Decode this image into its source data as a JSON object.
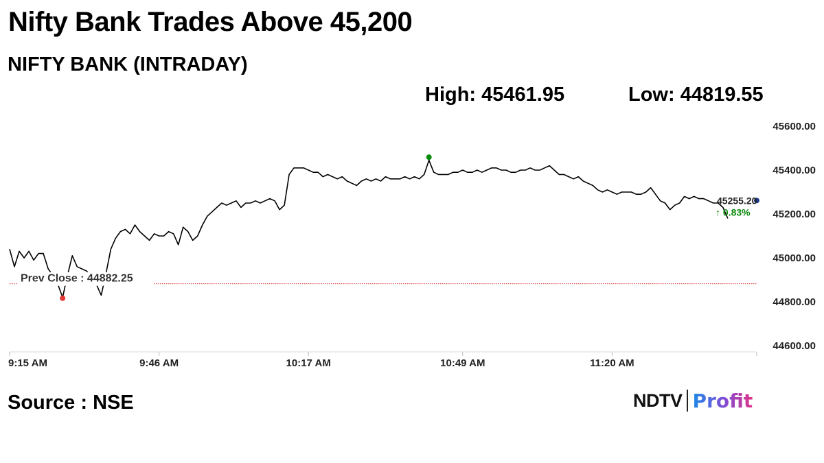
{
  "headline": "Nifty Bank Trades Above 45,200",
  "subtitle": "NIFTY BANK (INTRADAY)",
  "stats": {
    "high": "High: 45461.95",
    "low": "Low: 44819.55"
  },
  "source": "Source : NSE",
  "logo": {
    "brand": "NDTV",
    "product": "Profit"
  },
  "chart_data": {
    "type": "line",
    "x_ticks": [
      "9:15 AM",
      "9:46 AM",
      "10:17 AM",
      "10:49 AM",
      "11:20 AM"
    ],
    "y_ticks": [
      "45600.00",
      "45400.00",
      "45200.00",
      "45000.00",
      "44800.00",
      "44600.00"
    ],
    "ylim": [
      44600,
      45600
    ],
    "xlim": [
      "9:15 AM",
      "11:50 AM"
    ],
    "prev_close": {
      "label": "Prev Close : 44882.25",
      "value": 44882.25
    },
    "last": {
      "value": "45255.20",
      "change": "↑ 0.83%"
    },
    "high_value": 45461.95,
    "low_value": 44819.55,
    "series": [
      {
        "values": [
          [
            "9:15",
            45040
          ],
          [
            "9:16",
            44960
          ],
          [
            "9:17",
            45030
          ],
          [
            "9:18",
            45000
          ],
          [
            "9:19",
            45030
          ],
          [
            "9:20",
            44990
          ],
          [
            "9:21",
            45020
          ],
          [
            "9:22",
            45020
          ],
          [
            "9:23",
            44950
          ],
          [
            "9:24",
            44920
          ],
          [
            "9:25",
            44880
          ],
          [
            "9:26",
            44820
          ],
          [
            "9:27",
            44920
          ],
          [
            "9:28",
            45010
          ],
          [
            "9:29",
            44960
          ],
          [
            "9:30",
            44950
          ],
          [
            "9:31",
            44940
          ],
          [
            "9:32",
            44910
          ],
          [
            "9:33",
            44880
          ],
          [
            "9:34",
            44830
          ],
          [
            "9:35",
            44930
          ],
          [
            "9:36",
            45040
          ],
          [
            "9:37",
            45090
          ],
          [
            "9:38",
            45120
          ],
          [
            "9:39",
            45130
          ],
          [
            "9:40",
            45110
          ],
          [
            "9:41",
            45150
          ],
          [
            "9:42",
            45120
          ],
          [
            "9:43",
            45100
          ],
          [
            "9:44",
            45080
          ],
          [
            "9:45",
            45110
          ],
          [
            "9:46",
            45100
          ],
          [
            "9:47",
            45100
          ],
          [
            "9:48",
            45120
          ],
          [
            "9:49",
            45110
          ],
          [
            "9:50",
            45060
          ],
          [
            "9:51",
            45140
          ],
          [
            "9:52",
            45120
          ],
          [
            "9:53",
            45080
          ],
          [
            "9:54",
            45100
          ],
          [
            "9:55",
            45150
          ],
          [
            "9:56",
            45190
          ],
          [
            "9:57",
            45210
          ],
          [
            "9:58",
            45230
          ],
          [
            "9:59",
            45250
          ],
          [
            "10:00",
            45240
          ],
          [
            "10:01",
            45250
          ],
          [
            "10:02",
            45260
          ],
          [
            "10:03",
            45230
          ],
          [
            "10:04",
            45250
          ],
          [
            "10:05",
            45250
          ],
          [
            "10:06",
            45260
          ],
          [
            "10:07",
            45250
          ],
          [
            "10:08",
            45260
          ],
          [
            "10:09",
            45270
          ],
          [
            "10:10",
            45260
          ],
          [
            "10:11",
            45220
          ],
          [
            "10:12",
            45240
          ],
          [
            "10:13",
            45380
          ],
          [
            "10:14",
            45410
          ],
          [
            "10:15",
            45410
          ],
          [
            "10:16",
            45410
          ],
          [
            "10:17",
            45400
          ],
          [
            "10:18",
            45390
          ],
          [
            "10:19",
            45390
          ],
          [
            "10:20",
            45370
          ],
          [
            "10:21",
            45380
          ],
          [
            "10:22",
            45370
          ],
          [
            "10:23",
            45360
          ],
          [
            "10:24",
            45370
          ],
          [
            "10:25",
            45350
          ],
          [
            "10:26",
            45340
          ],
          [
            "10:27",
            45330
          ],
          [
            "10:28",
            45350
          ],
          [
            "10:29",
            45360
          ],
          [
            "10:30",
            45350
          ],
          [
            "10:31",
            45360
          ],
          [
            "10:32",
            45350
          ],
          [
            "10:33",
            45370
          ],
          [
            "10:34",
            45360
          ],
          [
            "10:35",
            45360
          ],
          [
            "10:36",
            45360
          ],
          [
            "10:37",
            45370
          ],
          [
            "10:38",
            45360
          ],
          [
            "10:39",
            45370
          ],
          [
            "10:40",
            45360
          ],
          [
            "10:41",
            45380
          ],
          [
            "10:42",
            45445
          ],
          [
            "10:43",
            45390
          ],
          [
            "10:44",
            45380
          ],
          [
            "10:45",
            45380
          ],
          [
            "10:46",
            45380
          ],
          [
            "10:47",
            45390
          ],
          [
            "10:48",
            45390
          ],
          [
            "10:49",
            45400
          ],
          [
            "10:50",
            45390
          ],
          [
            "10:51",
            45390
          ],
          [
            "10:52",
            45400
          ],
          [
            "10:53",
            45390
          ],
          [
            "10:54",
            45400
          ],
          [
            "10:55",
            45410
          ],
          [
            "10:56",
            45410
          ],
          [
            "10:57",
            45400
          ],
          [
            "10:58",
            45400
          ],
          [
            "10:59",
            45390
          ],
          [
            "11:00",
            45390
          ],
          [
            "11:01",
            45400
          ],
          [
            "11:02",
            45400
          ],
          [
            "11:03",
            45410
          ],
          [
            "11:04",
            45400
          ],
          [
            "11:05",
            45400
          ],
          [
            "11:06",
            45410
          ],
          [
            "11:07",
            45420
          ],
          [
            "11:08",
            45400
          ],
          [
            "11:09",
            45380
          ],
          [
            "11:10",
            45380
          ],
          [
            "11:11",
            45370
          ],
          [
            "11:12",
            45360
          ],
          [
            "11:13",
            45370
          ],
          [
            "11:14",
            45350
          ],
          [
            "11:15",
            45340
          ],
          [
            "11:16",
            45330
          ],
          [
            "11:17",
            45310
          ],
          [
            "11:18",
            45300
          ],
          [
            "11:19",
            45310
          ],
          [
            "11:20",
            45300
          ],
          [
            "11:21",
            45290
          ],
          [
            "11:22",
            45300
          ],
          [
            "11:23",
            45300
          ],
          [
            "11:24",
            45300
          ],
          [
            "11:25",
            45290
          ],
          [
            "11:26",
            45290
          ],
          [
            "11:27",
            45300
          ],
          [
            "11:28",
            45320
          ],
          [
            "11:29",
            45290
          ],
          [
            "11:30",
            45260
          ],
          [
            "11:31",
            45250
          ],
          [
            "11:32",
            45220
          ],
          [
            "11:33",
            45240
          ],
          [
            "11:34",
            45250
          ],
          [
            "11:35",
            45280
          ],
          [
            "11:36",
            45270
          ],
          [
            "11:37",
            45280
          ],
          [
            "11:38",
            45270
          ],
          [
            "11:39",
            45270
          ],
          [
            "11:40",
            45260
          ],
          [
            "11:41",
            45250
          ],
          [
            "11:42",
            45250
          ],
          [
            "11:43",
            45230
          ],
          [
            "11:44",
            45180
          ]
        ]
      }
    ]
  },
  "colors": {
    "line": "#000000",
    "prev_close_line": "#d32f2f",
    "high_marker": "#0a8a0a",
    "low_marker": "#e53935",
    "last_marker": "#1e3a8a",
    "change_up": "#0a8a0a"
  }
}
